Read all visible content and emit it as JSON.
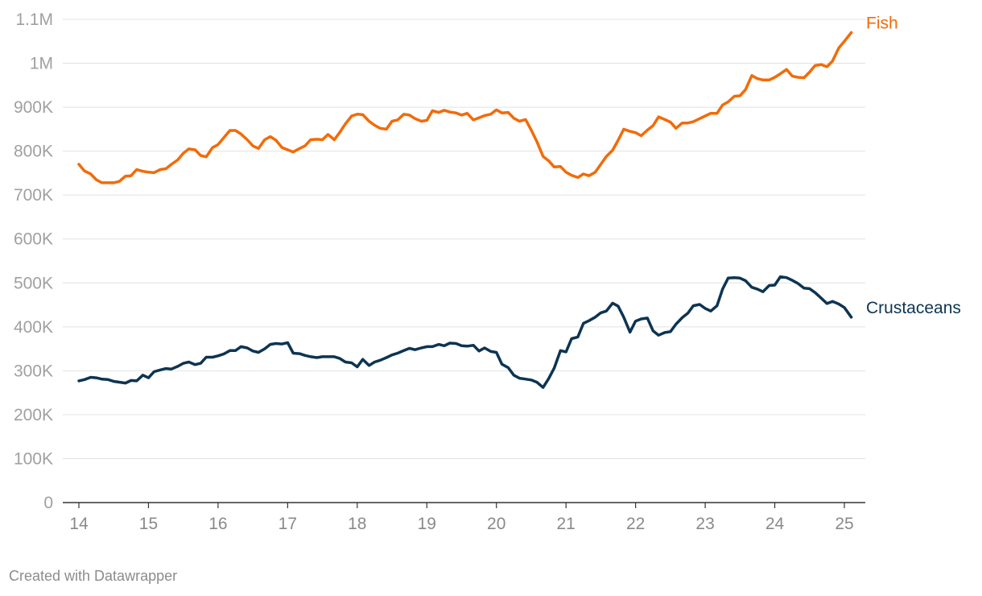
{
  "footer": {
    "credit": "Created with Datawrapper"
  },
  "chart_data": {
    "type": "line",
    "title": "",
    "xlabel": "",
    "ylabel": "",
    "x_ticks": [
      "14",
      "15",
      "16",
      "17",
      "18",
      "19",
      "20",
      "21",
      "22",
      "23",
      "24",
      "25"
    ],
    "y_ticks": [
      "0",
      "100K",
      "200K",
      "300K",
      "400K",
      "500K",
      "600K",
      "700K",
      "800K",
      "900K",
      "1M",
      "1.1M"
    ],
    "xlim": [
      2014,
      2025.2
    ],
    "ylim": [
      0,
      1100000
    ],
    "grid": true,
    "legend": "direct labels at line ends",
    "series": [
      {
        "name": "Fish",
        "color": "#f26b08",
        "points": [
          [
            2014.0,
            770000
          ],
          [
            2014.08,
            755000
          ],
          [
            2014.17,
            748000
          ],
          [
            2014.25,
            735000
          ],
          [
            2014.33,
            728000
          ],
          [
            2014.42,
            728000
          ],
          [
            2014.5,
            728000
          ],
          [
            2014.58,
            731000
          ],
          [
            2014.67,
            743000
          ],
          [
            2014.75,
            744000
          ],
          [
            2014.83,
            758000
          ],
          [
            2014.92,
            754000
          ],
          [
            2015.0,
            752000
          ],
          [
            2015.08,
            751000
          ],
          [
            2015.17,
            758000
          ],
          [
            2015.25,
            760000
          ],
          [
            2015.33,
            770000
          ],
          [
            2015.42,
            780000
          ],
          [
            2015.5,
            795000
          ],
          [
            2015.58,
            805000
          ],
          [
            2015.67,
            803000
          ],
          [
            2015.75,
            790000
          ],
          [
            2015.83,
            787000
          ],
          [
            2015.92,
            808000
          ],
          [
            2016.0,
            815000
          ],
          [
            2016.08,
            830000
          ],
          [
            2016.17,
            847000
          ],
          [
            2016.25,
            847000
          ],
          [
            2016.33,
            839000
          ],
          [
            2016.42,
            826000
          ],
          [
            2016.5,
            812000
          ],
          [
            2016.58,
            806000
          ],
          [
            2016.67,
            826000
          ],
          [
            2016.75,
            833000
          ],
          [
            2016.83,
            825000
          ],
          [
            2016.92,
            808000
          ],
          [
            2017.0,
            803000
          ],
          [
            2017.08,
            798000
          ],
          [
            2017.17,
            806000
          ],
          [
            2017.25,
            812000
          ],
          [
            2017.33,
            826000
          ],
          [
            2017.42,
            827000
          ],
          [
            2017.5,
            826000
          ],
          [
            2017.58,
            838000
          ],
          [
            2017.67,
            826000
          ],
          [
            2017.75,
            843000
          ],
          [
            2017.83,
            862000
          ],
          [
            2017.92,
            880000
          ],
          [
            2018.0,
            884000
          ],
          [
            2018.08,
            883000
          ],
          [
            2018.17,
            868000
          ],
          [
            2018.25,
            859000
          ],
          [
            2018.33,
            852000
          ],
          [
            2018.42,
            850000
          ],
          [
            2018.5,
            868000
          ],
          [
            2018.58,
            871000
          ],
          [
            2018.67,
            884000
          ],
          [
            2018.75,
            882000
          ],
          [
            2018.83,
            874000
          ],
          [
            2018.92,
            868000
          ],
          [
            2019.0,
            870000
          ],
          [
            2019.08,
            892000
          ],
          [
            2019.17,
            888000
          ],
          [
            2019.25,
            893000
          ],
          [
            2019.33,
            889000
          ],
          [
            2019.42,
            887000
          ],
          [
            2019.5,
            882000
          ],
          [
            2019.58,
            886000
          ],
          [
            2019.67,
            871000
          ],
          [
            2019.75,
            876000
          ],
          [
            2019.83,
            881000
          ],
          [
            2019.92,
            884000
          ],
          [
            2020.0,
            894000
          ],
          [
            2020.08,
            887000
          ],
          [
            2020.17,
            888000
          ],
          [
            2020.25,
            875000
          ],
          [
            2020.33,
            868000
          ],
          [
            2020.42,
            872000
          ],
          [
            2020.5,
            848000
          ],
          [
            2020.58,
            822000
          ],
          [
            2020.67,
            788000
          ],
          [
            2020.75,
            778000
          ],
          [
            2020.83,
            764000
          ],
          [
            2020.92,
            765000
          ],
          [
            2021.0,
            752000
          ],
          [
            2021.08,
            745000
          ],
          [
            2021.17,
            740000
          ],
          [
            2021.25,
            748000
          ],
          [
            2021.33,
            744000
          ],
          [
            2021.42,
            752000
          ],
          [
            2021.5,
            770000
          ],
          [
            2021.58,
            788000
          ],
          [
            2021.67,
            802000
          ],
          [
            2021.75,
            825000
          ],
          [
            2021.83,
            850000
          ],
          [
            2021.92,
            845000
          ],
          [
            2022.0,
            842000
          ],
          [
            2022.08,
            835000
          ],
          [
            2022.17,
            848000
          ],
          [
            2022.25,
            858000
          ],
          [
            2022.33,
            878000
          ],
          [
            2022.42,
            872000
          ],
          [
            2022.5,
            866000
          ],
          [
            2022.58,
            852000
          ],
          [
            2022.67,
            864000
          ],
          [
            2022.75,
            864000
          ],
          [
            2022.83,
            867000
          ],
          [
            2022.92,
            874000
          ],
          [
            2023.0,
            880000
          ],
          [
            2023.08,
            886000
          ],
          [
            2023.17,
            886000
          ],
          [
            2023.25,
            905000
          ],
          [
            2023.33,
            912000
          ],
          [
            2023.42,
            925000
          ],
          [
            2023.5,
            926000
          ],
          [
            2023.58,
            940000
          ],
          [
            2023.67,
            972000
          ],
          [
            2023.75,
            965000
          ],
          [
            2023.83,
            962000
          ],
          [
            2023.92,
            962000
          ],
          [
            2024.0,
            968000
          ],
          [
            2024.08,
            976000
          ],
          [
            2024.17,
            986000
          ],
          [
            2024.25,
            971000
          ],
          [
            2024.33,
            968000
          ],
          [
            2024.42,
            967000
          ],
          [
            2024.5,
            980000
          ],
          [
            2024.58,
            995000
          ],
          [
            2024.67,
            997000
          ],
          [
            2024.75,
            992000
          ],
          [
            2024.83,
            1005000
          ],
          [
            2024.92,
            1035000
          ],
          [
            2025.0,
            1050000
          ],
          [
            2025.1,
            1070000
          ]
        ]
      },
      {
        "name": "Crustaceans",
        "color": "#0d3452",
        "points": [
          [
            2014.0,
            277000
          ],
          [
            2014.08,
            280000
          ],
          [
            2014.17,
            285000
          ],
          [
            2014.25,
            284000
          ],
          [
            2014.33,
            281000
          ],
          [
            2014.42,
            280000
          ],
          [
            2014.5,
            276000
          ],
          [
            2014.58,
            274000
          ],
          [
            2014.67,
            272000
          ],
          [
            2014.75,
            278000
          ],
          [
            2014.83,
            277000
          ],
          [
            2014.92,
            290000
          ],
          [
            2015.0,
            284000
          ],
          [
            2015.08,
            298000
          ],
          [
            2015.17,
            302000
          ],
          [
            2015.25,
            305000
          ],
          [
            2015.33,
            304000
          ],
          [
            2015.42,
            310000
          ],
          [
            2015.5,
            317000
          ],
          [
            2015.58,
            320000
          ],
          [
            2015.67,
            314000
          ],
          [
            2015.75,
            317000
          ],
          [
            2015.83,
            331000
          ],
          [
            2015.92,
            331000
          ],
          [
            2016.0,
            334000
          ],
          [
            2016.08,
            338000
          ],
          [
            2016.17,
            346000
          ],
          [
            2016.25,
            346000
          ],
          [
            2016.33,
            355000
          ],
          [
            2016.42,
            352000
          ],
          [
            2016.5,
            345000
          ],
          [
            2016.58,
            342000
          ],
          [
            2016.67,
            350000
          ],
          [
            2016.75,
            360000
          ],
          [
            2016.83,
            362000
          ],
          [
            2016.92,
            361000
          ],
          [
            2017.0,
            364000
          ],
          [
            2017.08,
            340000
          ],
          [
            2017.17,
            339000
          ],
          [
            2017.25,
            335000
          ],
          [
            2017.33,
            332000
          ],
          [
            2017.42,
            330000
          ],
          [
            2017.5,
            332000
          ],
          [
            2017.58,
            332000
          ],
          [
            2017.67,
            332000
          ],
          [
            2017.75,
            328000
          ],
          [
            2017.83,
            320000
          ],
          [
            2017.92,
            318000
          ],
          [
            2018.0,
            309000
          ],
          [
            2018.08,
            326000
          ],
          [
            2018.17,
            312000
          ],
          [
            2018.25,
            320000
          ],
          [
            2018.33,
            324000
          ],
          [
            2018.42,
            330000
          ],
          [
            2018.5,
            336000
          ],
          [
            2018.58,
            340000
          ],
          [
            2018.67,
            346000
          ],
          [
            2018.75,
            351000
          ],
          [
            2018.83,
            348000
          ],
          [
            2018.92,
            352000
          ],
          [
            2019.0,
            355000
          ],
          [
            2019.08,
            355000
          ],
          [
            2019.17,
            360000
          ],
          [
            2019.25,
            357000
          ],
          [
            2019.33,
            363000
          ],
          [
            2019.42,
            362000
          ],
          [
            2019.5,
            357000
          ],
          [
            2019.58,
            356000
          ],
          [
            2019.67,
            358000
          ],
          [
            2019.75,
            345000
          ],
          [
            2019.83,
            352000
          ],
          [
            2019.92,
            344000
          ],
          [
            2020.0,
            342000
          ],
          [
            2020.08,
            315000
          ],
          [
            2020.17,
            307000
          ],
          [
            2020.25,
            290000
          ],
          [
            2020.33,
            283000
          ],
          [
            2020.42,
            281000
          ],
          [
            2020.5,
            279000
          ],
          [
            2020.58,
            274000
          ],
          [
            2020.67,
            262000
          ],
          [
            2020.75,
            282000
          ],
          [
            2020.83,
            306000
          ],
          [
            2020.92,
            346000
          ],
          [
            2021.0,
            343000
          ],
          [
            2021.08,
            373000
          ],
          [
            2021.17,
            377000
          ],
          [
            2021.25,
            408000
          ],
          [
            2021.33,
            414000
          ],
          [
            2021.42,
            422000
          ],
          [
            2021.5,
            432000
          ],
          [
            2021.58,
            436000
          ],
          [
            2021.67,
            454000
          ],
          [
            2021.75,
            447000
          ],
          [
            2021.83,
            422000
          ],
          [
            2021.92,
            388000
          ],
          [
            2022.0,
            413000
          ],
          [
            2022.08,
            418000
          ],
          [
            2022.17,
            420000
          ],
          [
            2022.25,
            391000
          ],
          [
            2022.33,
            381000
          ],
          [
            2022.42,
            387000
          ],
          [
            2022.5,
            389000
          ],
          [
            2022.58,
            406000
          ],
          [
            2022.67,
            421000
          ],
          [
            2022.75,
            431000
          ],
          [
            2022.83,
            448000
          ],
          [
            2022.92,
            451000
          ],
          [
            2023.0,
            442000
          ],
          [
            2023.08,
            436000
          ],
          [
            2023.17,
            448000
          ],
          [
            2023.25,
            486000
          ],
          [
            2023.33,
            511000
          ],
          [
            2023.42,
            512000
          ],
          [
            2023.5,
            511000
          ],
          [
            2023.58,
            505000
          ],
          [
            2023.67,
            490000
          ],
          [
            2023.75,
            486000
          ],
          [
            2023.83,
            480000
          ],
          [
            2023.92,
            494000
          ],
          [
            2024.0,
            495000
          ],
          [
            2024.08,
            514000
          ],
          [
            2024.17,
            512000
          ],
          [
            2024.25,
            506000
          ],
          [
            2024.33,
            499000
          ],
          [
            2024.42,
            488000
          ],
          [
            2024.5,
            487000
          ],
          [
            2024.58,
            478000
          ],
          [
            2024.67,
            465000
          ],
          [
            2024.75,
            453000
          ],
          [
            2024.83,
            458000
          ],
          [
            2024.92,
            452000
          ],
          [
            2025.0,
            444000
          ],
          [
            2025.1,
            422000
          ]
        ]
      }
    ]
  }
}
